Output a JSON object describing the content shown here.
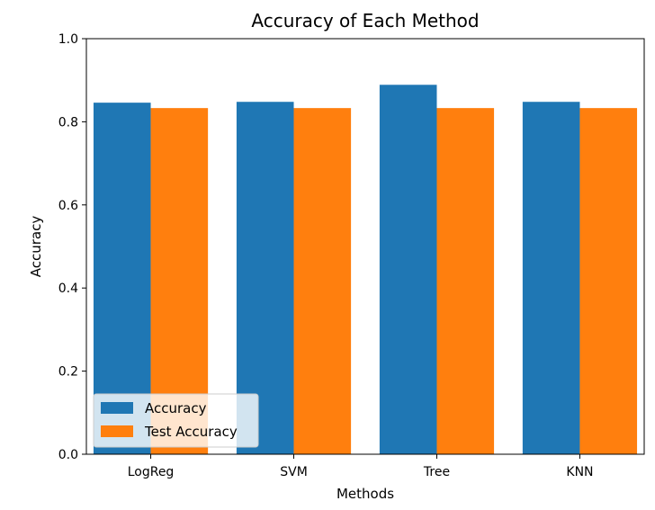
{
  "chart_data": {
    "type": "bar",
    "title": "Accuracy of Each Method",
    "xlabel": "Methods",
    "ylabel": "Accuracy",
    "categories": [
      "LogReg",
      "SVM",
      "Tree",
      "KNN"
    ],
    "series": [
      {
        "name": "Accuracy",
        "values": [
          0.846,
          0.848,
          0.889,
          0.848
        ],
        "color": "#1f77b4"
      },
      {
        "name": "Test Accuracy",
        "values": [
          0.833,
          0.833,
          0.833,
          0.833
        ],
        "color": "#ff7f0e"
      }
    ],
    "ylim": [
      0,
      1.0
    ],
    "yticks": [
      "0.0",
      "0.2",
      "0.4",
      "0.6",
      "0.8",
      "1.0"
    ],
    "grid": false,
    "legend_position": "lower-left"
  }
}
